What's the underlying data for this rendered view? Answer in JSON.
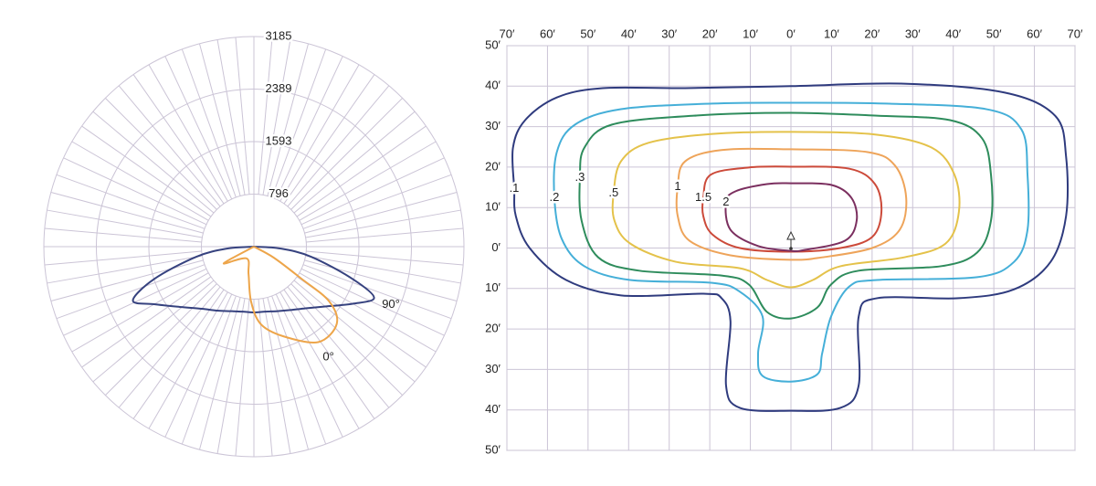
{
  "chart_data": [
    {
      "type": "polar",
      "rlim": [
        0,
        3185
      ],
      "rticks": [
        796,
        1593,
        2389,
        3185
      ],
      "theta_grid_step": 5,
      "series": [
        {
          "name": "90°",
          "color": "#36427f",
          "theta": [
            -90,
            -86,
            -80,
            -72,
            -66,
            -60,
            -50,
            -40,
            -30,
            -20,
            -10,
            0,
            10,
            20,
            30,
            40,
            50,
            60,
            67,
            72,
            80,
            86,
            90
          ],
          "values": [
            0,
            400,
            890,
            1590,
            2008,
            1745,
            1425,
            1230,
            1120,
            1040,
            1000,
            997,
            1000,
            1040,
            1110,
            1220,
            1410,
            1730,
            1980,
            1560,
            880,
            400,
            0
          ]
        },
        {
          "name": "0°",
          "color": "#eda54a",
          "theta": [
            -70,
            -61,
            -32,
            -11,
            -3,
            5,
            18,
            34,
            47,
            54,
            56,
            61,
            70
          ],
          "values": [
            0,
            523,
            210,
            425,
            830,
            1177,
            1427,
            1745,
            1717,
            1410,
            870,
            346,
            0
          ]
        }
      ]
    },
    {
      "type": "contour",
      "xlim": [
        -70,
        70
      ],
      "ylim": [
        -50,
        50
      ],
      "grid": true,
      "xticks": [
        {
          "value": -70,
          "label": "70′"
        },
        {
          "value": -60,
          "label": "60′"
        },
        {
          "value": -50,
          "label": "50′"
        },
        {
          "value": -40,
          "label": "40′"
        },
        {
          "value": -30,
          "label": "30′"
        },
        {
          "value": -20,
          "label": "20′"
        },
        {
          "value": -10,
          "label": "10′"
        },
        {
          "value": 0,
          "label": "0′"
        },
        {
          "value": 10,
          "label": "10′"
        },
        {
          "value": 20,
          "label": "20′"
        },
        {
          "value": 30,
          "label": "30′"
        },
        {
          "value": 40,
          "label": "40′"
        },
        {
          "value": 50,
          "label": "50′"
        },
        {
          "value": 60,
          "label": "60′"
        },
        {
          "value": 70,
          "label": "70′"
        }
      ],
      "yticks": [
        {
          "value": 50,
          "label": "50′"
        },
        {
          "value": 40,
          "label": "40′"
        },
        {
          "value": 30,
          "label": "30′"
        },
        {
          "value": 20,
          "label": "20′"
        },
        {
          "value": 10,
          "label": "10′"
        },
        {
          "value": 0,
          "label": "0′"
        },
        {
          "value": -10,
          "label": "10′"
        },
        {
          "value": -20,
          "label": "20′"
        },
        {
          "value": -30,
          "label": "30′"
        },
        {
          "value": -40,
          "label": "40′"
        },
        {
          "value": -50,
          "label": "50′"
        }
      ],
      "series": [
        {
          "name": ".1",
          "color": "#2f3b7e",
          "x": [
            -68.2,
            -68.5,
            -65.5,
            -57.7,
            -46.4,
            -26.1,
            0,
            27.9,
            52.7,
            65.1,
            67.8,
            67.8,
            64.0,
            55.0,
            41.4,
            21.2,
            16.7,
            16.7,
            12.2,
            0,
            -12.6,
            -16.0,
            -14.9,
            -17.1,
            -21.6,
            -41.9,
            -55.4,
            -64.4,
            -67.8
          ],
          "y": [
            14.7,
            24.8,
            31.6,
            37.2,
            39.5,
            39.5,
            40.0,
            40.6,
            38.4,
            32.7,
            22.6,
            7.9,
            -3.4,
            -10.2,
            -12.4,
            -12.4,
            -16.9,
            -33.9,
            -39.5,
            -40.2,
            -39.5,
            -33.9,
            -18.1,
            -12.4,
            -11.3,
            -11.7,
            -7.9,
            0,
            7.9
          ]
        },
        {
          "name": ".2",
          "color": "#45afd8",
          "x": [
            -58.3,
            -57.7,
            -53.2,
            -41.9,
            -19.4,
            0,
            23.4,
            48.2,
            56.8,
            58.3,
            58.3,
            55.0,
            45.9,
            21.2,
            14.4,
            9.9,
            7.7,
            6.5,
            0,
            -7.0,
            -8.1,
            -7.0,
            -12.6,
            -19.4,
            -39.6,
            -50.9,
            -56.5
          ],
          "y": [
            12.4,
            23.7,
            30.5,
            34.3,
            35.7,
            35.9,
            35.7,
            34.3,
            29.3,
            18.1,
            4.5,
            -3.4,
            -7.2,
            -7.9,
            -9.5,
            -16.9,
            -26.0,
            -31.2,
            -33.0,
            -31.6,
            -26.0,
            -16.9,
            -10.8,
            -8.6,
            -7.9,
            -4.5,
            2.3
          ]
        },
        {
          "name": ".3",
          "color": "#2e8c5c",
          "x": [
            -52.0,
            -50.9,
            -44.1,
            -23.9,
            0,
            21.2,
            39.2,
            47.1,
            49.3,
            49.3,
            45.9,
            36.9,
            16.7,
            9.9,
            6.5,
            0,
            -5.9,
            -10.4,
            -17.1,
            -37.4,
            -47.5,
            -51.6
          ],
          "y": [
            17.4,
            24.8,
            30.5,
            32.7,
            33.4,
            32.7,
            31.6,
            27.1,
            18.1,
            6.8,
            -1.1,
            -4.5,
            -5.6,
            -9.0,
            -14.7,
            -17.4,
            -15.8,
            -9.0,
            -6.8,
            -5.6,
            -2.3,
            6.8
          ]
        },
        {
          "name": ".5",
          "color": "#e4c24a",
          "x": [
            -43.7,
            -41.9,
            -35.1,
            -19.4,
            0,
            21.2,
            34.7,
            40.3,
            41.4,
            38.1,
            27.9,
            12.2,
            5.4,
            0,
            -5.9,
            -12.6,
            -28.4,
            -39.6,
            -43.5
          ],
          "y": [
            13.5,
            21.4,
            26.0,
            28.2,
            28.7,
            28.0,
            24.8,
            18.1,
            9.0,
            1.1,
            -2.3,
            -4.5,
            -7.9,
            -9.7,
            -7.9,
            -5.0,
            -3.4,
            1.1,
            6.8
          ]
        },
        {
          "name": "1",
          "color": "#eea45a",
          "x": [
            -27.9,
            -26.1,
            -17.1,
            0,
            18.9,
            25.7,
            28.4,
            26.8,
            20.0,
            7.7,
            0,
            -14.9,
            -25.0,
            -27.9
          ],
          "y": [
            15.1,
            21.4,
            24.2,
            24.4,
            23.7,
            20.3,
            12.4,
            4.5,
            0,
            -2.3,
            -2.9,
            -1.8,
            1.8,
            7.9
          ]
        },
        {
          "name": "1.5",
          "color": "#cc4a3a",
          "x": [
            -21.6,
            -19.8,
            -10.4,
            0,
            14.4,
            20.7,
            22.3,
            20.0,
            12.2,
            0,
            -12.6,
            -19.4,
            -21.6
          ],
          "y": [
            12.4,
            18.1,
            19.9,
            20.1,
            19.6,
            15.8,
            9.0,
            2.7,
            0,
            -0.9,
            0,
            3.4,
            7.9
          ]
        },
        {
          "name": "2",
          "color": "#7b2f5f",
          "x": [
            -16.0,
            -13.7,
            -5.9,
            0,
            9.9,
            14.9,
            16.2,
            13.3,
            3.2,
            0,
            -8.1,
            -14.9
          ],
          "y": [
            11.3,
            14.0,
            15.8,
            16.0,
            15.6,
            12.4,
            6.8,
            1.8,
            -0.5,
            -0.7,
            0.5,
            4.5
          ]
        }
      ]
    }
  ]
}
